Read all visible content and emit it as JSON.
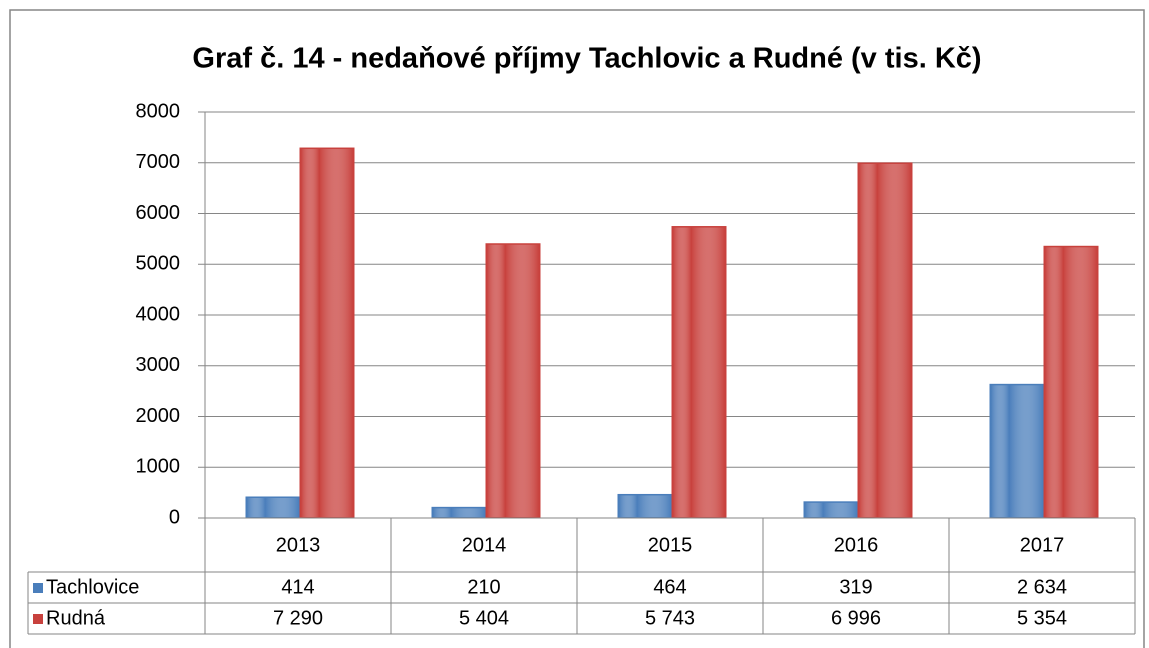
{
  "chart_data": {
    "type": "bar",
    "title": "Graf č. 14 - nedaňové příjmy Tachlovic a Rudné (v tis. Kč)",
    "categories": [
      "2013",
      "2014",
      "2015",
      "2016",
      "2017"
    ],
    "series": [
      {
        "name": "Tachlovice",
        "color": "#4a7ebb",
        "values": [
          414,
          210,
          464,
          319,
          2634
        ],
        "value_labels": [
          "414",
          "210",
          "464",
          "319",
          "2 634"
        ]
      },
      {
        "name": "Rudná",
        "color": "#c8413d",
        "values": [
          7290,
          5404,
          5743,
          6996,
          5354
        ],
        "value_labels": [
          "7 290",
          "5 404",
          "5 743",
          "6 996",
          "5 354"
        ]
      }
    ],
    "ylim": [
      0,
      8000
    ],
    "yticks": [
      0,
      1000,
      2000,
      3000,
      4000,
      5000,
      6000,
      7000,
      8000
    ],
    "grid": true
  }
}
